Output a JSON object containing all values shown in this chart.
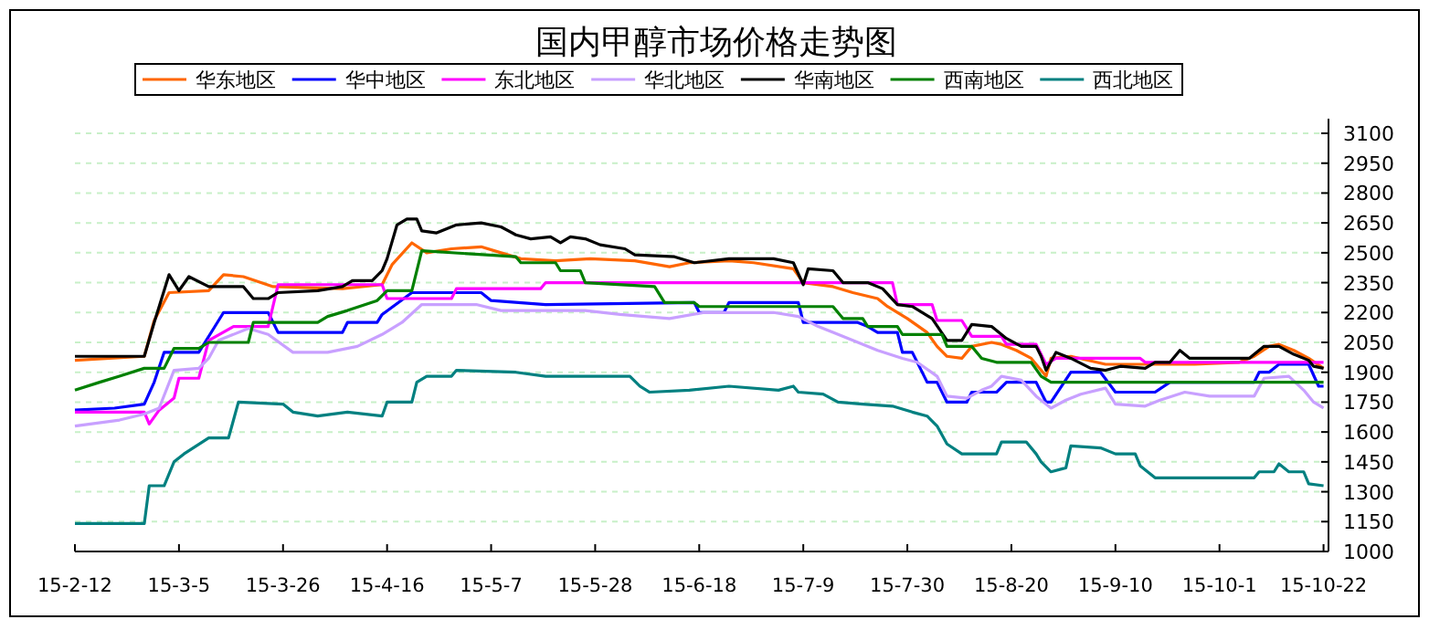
{
  "chart_data": {
    "type": "line",
    "title": "国内甲醇市场价格走势图",
    "legend": "top",
    "grid": "y",
    "xlim": [
      "--02-12",
      "--10-23"
    ],
    "xticks": [
      {
        "value": "--02-12",
        "label": "15-2-12"
      },
      {
        "value": "--03-05",
        "label": "15-3-5"
      },
      {
        "value": "--03-26",
        "label": "15-3-26"
      },
      {
        "value": "--04-16",
        "label": "15-4-16"
      },
      {
        "value": "--05-07",
        "label": "15-5-7"
      },
      {
        "value": "--05-28",
        "label": "15-5-28"
      },
      {
        "value": "--06-18",
        "label": "15-6-18"
      },
      {
        "value": "--07-09",
        "label": "15-7-9"
      },
      {
        "value": "--07-30",
        "label": "15-7-30"
      },
      {
        "value": "--08-20",
        "label": "15-8-20"
      },
      {
        "value": "--09-10",
        "label": "15-9-10"
      },
      {
        "value": "--10-01",
        "label": "15-10-1"
      },
      {
        "value": "--10-22",
        "label": "15-10-22"
      }
    ],
    "ylim": [
      1000,
      3100
    ],
    "yticks": [
      1000,
      1150,
      1300,
      1450,
      1600,
      1750,
      1900,
      2050,
      2200,
      2350,
      2500,
      2650,
      2800,
      2950,
      3100
    ],
    "series": [
      {
        "name": "华东地区",
        "color": "#ff6600",
        "x": [
          "--02-12",
          "--02-26",
          "--02-28",
          "--03-03",
          "--03-11",
          "--03-14",
          "--03-18",
          "--03-24",
          "--04-07",
          "--04-15",
          "--04-17",
          "--04-21",
          "--04-24",
          "--04-29",
          "--05-05",
          "--05-09",
          "--05-13",
          "--05-20",
          "--05-27",
          "--06-05",
          "--06-12",
          "--06-16",
          "--06-24",
          "--06-29",
          "--07-07",
          "--07-09",
          "--07-15",
          "--07-19",
          "--07-24",
          "--07-26",
          "--07-30",
          "--08-03",
          "--08-05",
          "--08-07",
          "--08-10",
          "--08-12",
          "--08-16",
          "--08-18",
          "--08-21",
          "--08-24",
          "--08-27",
          "--08-28",
          "--09-01",
          "--09-08",
          "--09-26",
          "--10-05",
          "--10-08",
          "--10-11",
          "--10-13",
          "--10-16",
          "--10-19",
          "--10-22"
        ],
        "values": [
          1960,
          1980,
          2160,
          2300,
          2310,
          2390,
          2380,
          2330,
          2320,
          2340,
          2440,
          2550,
          2500,
          2520,
          2530,
          2500,
          2470,
          2460,
          2470,
          2460,
          2430,
          2450,
          2460,
          2450,
          2420,
          2350,
          2330,
          2300,
          2270,
          2230,
          2170,
          2100,
          2030,
          1980,
          1970,
          2030,
          2050,
          2040,
          2010,
          1970,
          1880,
          1970,
          1980,
          1940,
          1940,
          1950,
          1980,
          2030,
          2040,
          2010,
          1970,
          1920
        ]
      },
      {
        "name": "华中地区",
        "color": "#0000ff",
        "x": [
          "--02-12",
          "--02-20",
          "--02-26",
          "--02-28",
          "--03-02",
          "--03-09",
          "--03-12",
          "--03-14",
          "--03-23",
          "--03-25",
          "--04-07",
          "--04-08",
          "--04-14",
          "--04-15",
          "--04-21",
          "--05-05",
          "--05-07",
          "--05-18",
          "--06-17",
          "--06-18",
          "--06-23",
          "--06-24",
          "--07-08",
          "--07-09",
          "--07-20",
          "--07-22",
          "--07-24",
          "--07-28",
          "--07-29",
          "--07-31",
          "--08-03",
          "--08-05",
          "--08-07",
          "--08-11",
          "--08-12",
          "--08-17",
          "--08-19",
          "--08-25",
          "--08-27",
          "--08-28",
          "--09-01",
          "--09-07",
          "--09-10",
          "--09-18",
          "--09-21",
          "--10-08",
          "--10-09",
          "--10-11",
          "--10-13",
          "--10-19",
          "--10-21",
          "--10-22"
        ],
        "values": [
          1710,
          1720,
          1740,
          1850,
          2000,
          2000,
          2120,
          2200,
          2200,
          2100,
          2100,
          2150,
          2150,
          2190,
          2300,
          2300,
          2260,
          2240,
          2250,
          2200,
          2200,
          2250,
          2250,
          2150,
          2150,
          2130,
          2100,
          2100,
          2000,
          2000,
          1850,
          1850,
          1750,
          1750,
          1800,
          1800,
          1850,
          1850,
          1750,
          1750,
          1900,
          1900,
          1800,
          1800,
          1850,
          1850,
          1900,
          1900,
          1940,
          1940,
          1830,
          1830
        ]
      },
      {
        "name": "东北地区",
        "color": "#ff00ff",
        "x": [
          "--02-12",
          "--02-26",
          "--02-27",
          "--03-01",
          "--03-04",
          "--03-05",
          "--03-09",
          "--03-11",
          "--03-16",
          "--03-23",
          "--03-25",
          "--04-15",
          "--04-16",
          "--04-29",
          "--04-30",
          "--05-17",
          "--05-18",
          "--07-27",
          "--07-28",
          "--08-04",
          "--08-05",
          "--08-10",
          "--08-12",
          "--08-18",
          "--08-19",
          "--08-25",
          "--08-27",
          "--08-29",
          "--09-15",
          "--09-16",
          "--10-22"
        ],
        "values": [
          1700,
          1700,
          1640,
          1710,
          1770,
          1870,
          1870,
          2060,
          2130,
          2130,
          2340,
          2340,
          2270,
          2270,
          2320,
          2320,
          2350,
          2350,
          2240,
          2240,
          2160,
          2160,
          2080,
          2080,
          2040,
          2040,
          1940,
          1970,
          1970,
          1950,
          1950
        ]
      },
      {
        "name": "华北地区",
        "color": "#c8a0ff",
        "x": [
          "--02-12",
          "--02-21",
          "--02-26",
          "--03-01",
          "--03-04",
          "--03-09",
          "--03-11",
          "--03-13",
          "--03-19",
          "--03-23",
          "--03-28",
          "--04-04",
          "--04-10",
          "--04-15",
          "--04-19",
          "--04-23",
          "--05-04",
          "--05-09",
          "--05-26",
          "--06-02",
          "--06-12",
          "--06-19",
          "--07-03",
          "--07-08",
          "--07-12",
          "--07-15",
          "--07-19",
          "--07-24",
          "--07-29",
          "--08-01",
          "--08-05",
          "--08-07",
          "--08-11",
          "--08-14",
          "--08-16",
          "--08-18",
          "--08-22",
          "--08-25",
          "--08-28",
          "--08-31",
          "--09-03",
          "--09-08",
          "--09-10",
          "--09-16",
          "--09-19",
          "--09-24",
          "--09-29",
          "--10-08",
          "--10-10",
          "--10-15",
          "--10-18",
          "--10-20",
          "--10-22"
        ],
        "values": [
          1630,
          1660,
          1690,
          1720,
          1910,
          1920,
          1970,
          2060,
          2120,
          2090,
          2000,
          2000,
          2030,
          2090,
          2150,
          2240,
          2240,
          2210,
          2210,
          2190,
          2170,
          2200,
          2200,
          2180,
          2130,
          2100,
          2060,
          2010,
          1970,
          1950,
          1880,
          1780,
          1770,
          1810,
          1830,
          1880,
          1860,
          1780,
          1720,
          1760,
          1790,
          1820,
          1740,
          1730,
          1760,
          1800,
          1780,
          1780,
          1870,
          1880,
          1810,
          1750,
          1720
        ]
      },
      {
        "name": "华南地区",
        "color": "#000000",
        "x": [
          "--02-12",
          "--02-26",
          "--02-28",
          "--03-03",
          "--03-05",
          "--03-07",
          "--03-11",
          "--03-18",
          "--03-20",
          "--03-23",
          "--03-25",
          "--04-02",
          "--04-07",
          "--04-09",
          "--04-13",
          "--04-15",
          "--04-16",
          "--04-18",
          "--04-20",
          "--04-22",
          "--04-23",
          "--04-26",
          "--04-30",
          "--05-05",
          "--05-09",
          "--05-12",
          "--05-15",
          "--05-19",
          "--05-21",
          "--05-23",
          "--05-26",
          "--05-29",
          "--06-03",
          "--06-05",
          "--06-13",
          "--06-17",
          "--06-24",
          "--07-03",
          "--07-07",
          "--07-09",
          "--07-10",
          "--07-15",
          "--07-17",
          "--07-22",
          "--07-25",
          "--07-28",
          "--07-31",
          "--08-04",
          "--08-07",
          "--08-10",
          "--08-12",
          "--08-16",
          "--08-19",
          "--08-22",
          "--08-25",
          "--08-26",
          "--08-27",
          "--08-29",
          "--09-01",
          "--09-05",
          "--09-08",
          "--09-11",
          "--09-16",
          "--09-18",
          "--09-21",
          "--09-23",
          "--09-25",
          "--09-29",
          "--10-07",
          "--10-08",
          "--10-10",
          "--10-13",
          "--10-16",
          "--10-19",
          "--10-20",
          "--10-22"
        ],
        "values": [
          1980,
          1980,
          2150,
          2390,
          2310,
          2380,
          2330,
          2330,
          2270,
          2270,
          2300,
          2310,
          2330,
          2360,
          2360,
          2410,
          2470,
          2640,
          2670,
          2670,
          2610,
          2600,
          2640,
          2650,
          2630,
          2590,
          2570,
          2580,
          2550,
          2580,
          2570,
          2540,
          2520,
          2490,
          2480,
          2450,
          2470,
          2470,
          2450,
          2340,
          2420,
          2410,
          2350,
          2350,
          2320,
          2240,
          2230,
          2170,
          2060,
          2060,
          2140,
          2130,
          2070,
          2030,
          2030,
          1980,
          1910,
          2000,
          1970,
          1920,
          1910,
          1930,
          1920,
          1950,
          1950,
          2010,
          1970,
          1970,
          1970,
          1990,
          2030,
          2030,
          1990,
          1960,
          1930,
          1920
        ]
      },
      {
        "name": "西南地区",
        "color": "#008000",
        "x": [
          "--02-12",
          "--02-17",
          "--02-21",
          "--02-26",
          "--03-02",
          "--03-04",
          "--03-09",
          "--03-11",
          "--03-19",
          "--03-20",
          "--04-02",
          "--04-04",
          "--04-08",
          "--04-14",
          "--04-16",
          "--04-21",
          "--04-23",
          "--05-12",
          "--05-13",
          "--05-20",
          "--05-21",
          "--05-25",
          "--05-26",
          "--06-09",
          "--06-11",
          "--06-17",
          "--06-18",
          "--07-15",
          "--07-17",
          "--07-21",
          "--07-22",
          "--07-28",
          "--07-29",
          "--08-06",
          "--08-07",
          "--08-12",
          "--08-14",
          "--08-17",
          "--08-24",
          "--08-26",
          "--08-28",
          "--10-22"
        ],
        "values": [
          1810,
          1850,
          1880,
          1920,
          1920,
          2020,
          2020,
          2050,
          2050,
          2150,
          2150,
          2180,
          2210,
          2260,
          2310,
          2310,
          2510,
          2480,
          2450,
          2450,
          2410,
          2410,
          2350,
          2330,
          2250,
          2250,
          2230,
          2230,
          2170,
          2170,
          2130,
          2130,
          2090,
          2090,
          2030,
          2030,
          1970,
          1950,
          1950,
          1880,
          1850,
          1850
        ]
      },
      {
        "name": "西北地区",
        "color": "#008080",
        "x": [
          "--02-12",
          "--02-26",
          "--02-27",
          "--03-02",
          "--03-04",
          "--03-06",
          "--03-11",
          "--03-15",
          "--03-17",
          "--03-26",
          "--03-28",
          "--04-02",
          "--04-08",
          "--04-15",
          "--04-16",
          "--04-21",
          "--04-22",
          "--04-24",
          "--04-29",
          "--04-30",
          "--05-12",
          "--05-18",
          "--06-04",
          "--06-06",
          "--06-08",
          "--06-16",
          "--06-24",
          "--07-04",
          "--07-07",
          "--07-08",
          "--07-13",
          "--07-16",
          "--07-21",
          "--07-27",
          "--07-31",
          "--08-03",
          "--08-05",
          "--08-07",
          "--08-10",
          "--08-17",
          "--08-18",
          "--08-23",
          "--08-25",
          "--08-26",
          "--08-28",
          "--08-31",
          "--09-01",
          "--09-07",
          "--09-10",
          "--09-14",
          "--09-15",
          "--09-18",
          "--09-22",
          "--10-08",
          "--10-09",
          "--10-12",
          "--10-13",
          "--10-15",
          "--10-18",
          "--10-19",
          "--10-22"
        ],
        "values": [
          1140,
          1140,
          1330,
          1330,
          1450,
          1490,
          1570,
          1570,
          1750,
          1740,
          1700,
          1680,
          1700,
          1680,
          1750,
          1750,
          1850,
          1880,
          1880,
          1910,
          1900,
          1880,
          1880,
          1830,
          1800,
          1810,
          1830,
          1810,
          1830,
          1800,
          1790,
          1750,
          1740,
          1730,
          1700,
          1680,
          1630,
          1540,
          1490,
          1490,
          1550,
          1550,
          1490,
          1450,
          1400,
          1420,
          1530,
          1520,
          1490,
          1490,
          1430,
          1370,
          1370,
          1370,
          1400,
          1400,
          1440,
          1400,
          1400,
          1340,
          1330
        ]
      }
    ]
  }
}
